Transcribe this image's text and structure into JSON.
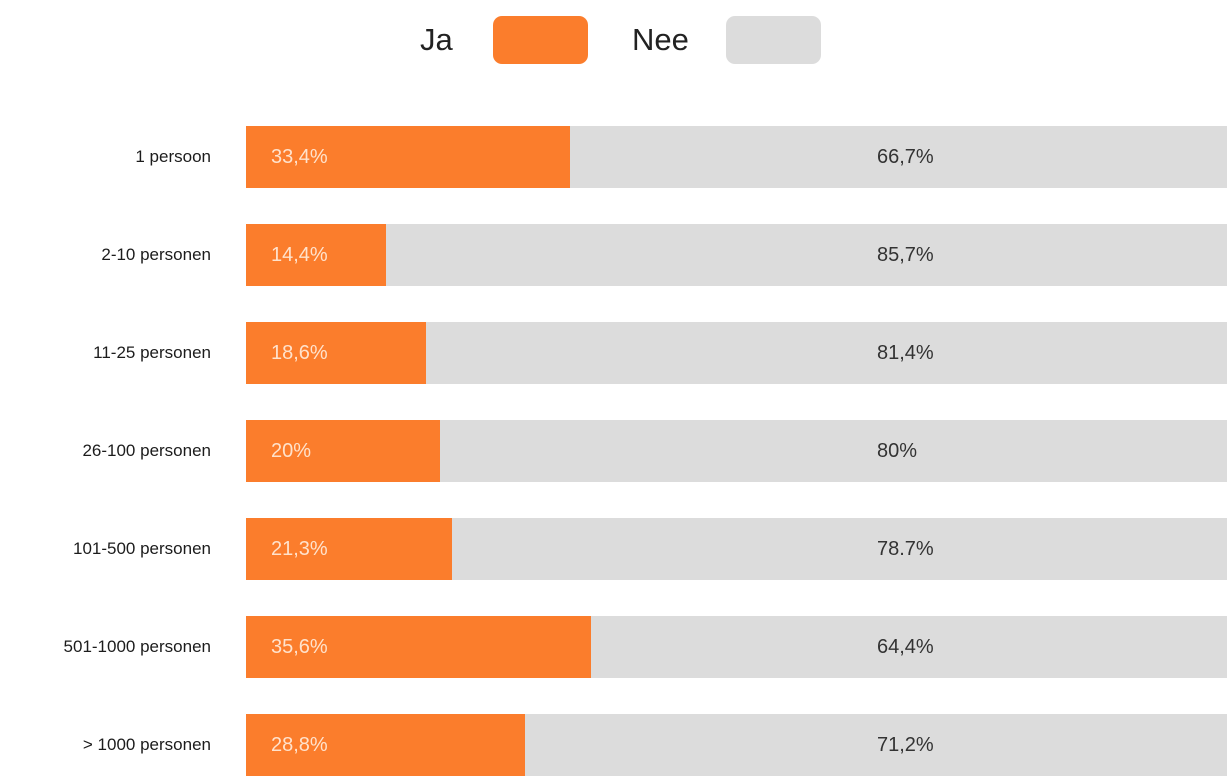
{
  "chart_data": {
    "type": "bar",
    "orientation": "horizontal",
    "stacked": true,
    "percent_stacked": true,
    "title": "",
    "xlabel": "",
    "ylabel": "",
    "legend_position": "top-center",
    "grid": false,
    "xlim": [
      0,
      100
    ],
    "categories": [
      "1 persoon",
      "2-10 personen",
      "11-25 personen",
      "26-100 personen",
      "101-500 personen",
      "501-1000 personen",
      "> 1000 personen"
    ],
    "series": [
      {
        "name": "Ja",
        "color": "#fb7d2c",
        "values": [
          33.4,
          14.4,
          18.6,
          20,
          21.3,
          35.6,
          28.8
        ],
        "labels": [
          "33,4%",
          "14,4%",
          "18,6%",
          "20%",
          "21,3%",
          "35,6%",
          "28,8%"
        ]
      },
      {
        "name": "Nee",
        "color": "#dcdcdc",
        "values": [
          66.7,
          85.7,
          81.4,
          80,
          78.7,
          64.4,
          71.2
        ],
        "labels": [
          "66,7%",
          "85,7%",
          "81,4%",
          "80%",
          "78.7%",
          "64,4%",
          "71,2%"
        ]
      }
    ]
  }
}
